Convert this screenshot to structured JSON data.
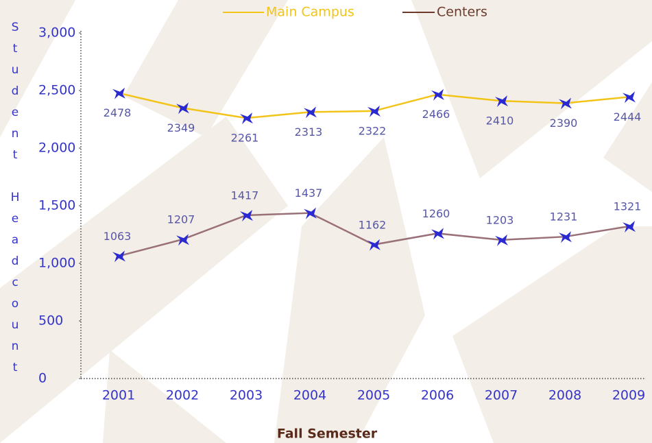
{
  "chart_data": {
    "type": "line",
    "x_label": "Fall Semester",
    "y_label": "Student Headcount",
    "categories": [
      "2001",
      "2002",
      "2003",
      "2004",
      "2005",
      "2006",
      "2007",
      "2008",
      "2009"
    ],
    "series": [
      {
        "name": "Main Campus",
        "color": "#f2c418",
        "values": [
          2478,
          2349,
          2261,
          2313,
          2322,
          2466,
          2410,
          2390,
          2444
        ]
      },
      {
        "name": "Centers",
        "color": "#9a7078",
        "values": [
          1063,
          1207,
          1417,
          1437,
          1162,
          1260,
          1203,
          1231,
          1321
        ]
      }
    ],
    "ylim": [
      0,
      3000
    ],
    "yticks": [
      0,
      500,
      {
        "value": 1000,
        "label": "1,000"
      },
      {
        "value": 1500,
        "label": "1,500"
      },
      {
        "value": 2000,
        "label": "2,000"
      },
      {
        "value": 2500,
        "label": "2,500"
      },
      {
        "value": 3000,
        "label": "3,000"
      }
    ],
    "legend": "top"
  }
}
